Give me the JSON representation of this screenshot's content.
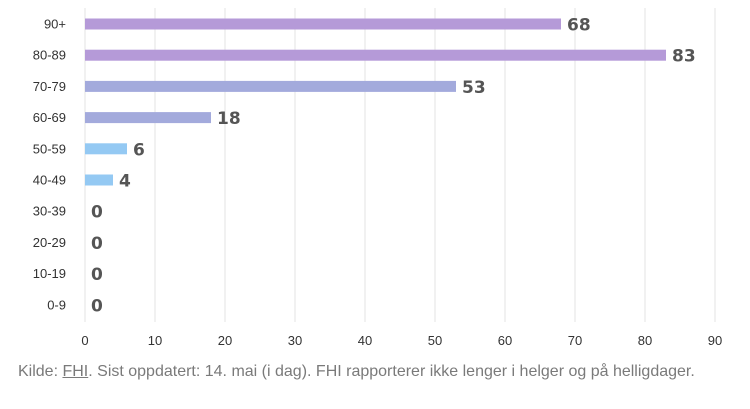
{
  "chart_data": {
    "type": "bar",
    "orientation": "horizontal",
    "categories": [
      "90+",
      "80-89",
      "70-79",
      "60-69",
      "50-59",
      "40-49",
      "30-39",
      "20-29",
      "10-19",
      "0-9"
    ],
    "values": [
      68,
      83,
      53,
      18,
      6,
      4,
      0,
      0,
      0,
      0
    ],
    "bar_colors": [
      "#b59ad8",
      "#b59ad8",
      "#a3aadc",
      "#a3aadc",
      "#94c9f3",
      "#94c9f3",
      "#94c9f3",
      "#94c9f3",
      "#94c9f3",
      "#94c9f3"
    ],
    "xlim": [
      0,
      90
    ],
    "xticks": [
      0,
      10,
      20,
      30,
      40,
      50,
      60,
      70,
      80,
      90
    ],
    "grid": "vertical",
    "data_labels": true
  },
  "source": {
    "prefix": "Kilde: ",
    "link": "FHI",
    "text": ". Sist oppdatert: 14. mai (i dag). FHI rapporterer ikke lenger i helger og på helligdager."
  }
}
